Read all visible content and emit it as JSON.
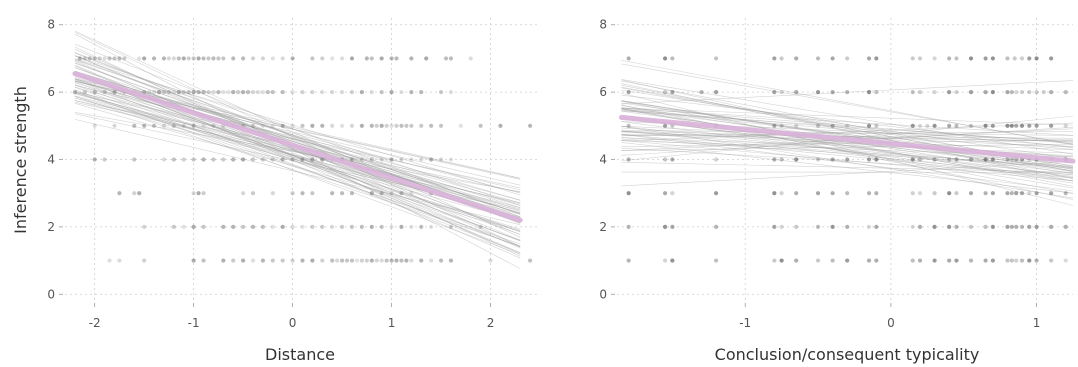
{
  "chart_data": [
    {
      "type": "scatter",
      "xlabel": "Distance",
      "ylabel": "Inference strength",
      "xlim": [
        -2.3,
        2.5
      ],
      "ylim": [
        -0.2,
        8.2
      ],
      "xticks": [
        -2,
        -1,
        0,
        1,
        2
      ],
      "yticks": [
        0,
        2,
        4,
        6,
        8
      ],
      "grid": true,
      "point_color": "#7f7f7f",
      "sample_line_color": "#9e9e9e",
      "fit_color": "#d9b3d9",
      "fit_line": {
        "x": [
          -2.2,
          2.3
        ],
        "y": [
          6.55,
          2.2
        ]
      },
      "rows": [
        {
          "y": 7,
          "x": [
            -2.15,
            -2.1,
            -2.05,
            -2.0,
            -1.95,
            -1.9,
            -1.85,
            -1.8,
            -1.75,
            -1.7,
            -1.55,
            -1.5,
            -1.4,
            -1.3,
            -1.25,
            -1.2,
            -1.15,
            -1.1,
            -1.05,
            -1.0,
            -0.95,
            -0.9,
            -0.85,
            -0.8,
            -0.75,
            -0.7,
            -0.6,
            -0.5,
            -0.4,
            -0.3,
            -0.2,
            -0.1,
            0.0,
            0.2,
            0.3,
            0.4,
            0.5,
            0.6,
            0.75,
            0.8,
            0.9,
            1.0,
            1.05,
            1.2,
            1.35,
            1.55,
            1.6,
            1.8
          ]
        },
        {
          "y": 6,
          "x": [
            -2.2,
            -2.1,
            -2.0,
            -1.9,
            -1.8,
            -1.7,
            -1.6,
            -1.5,
            -1.45,
            -1.4,
            -1.35,
            -1.3,
            -1.25,
            -1.2,
            -1.15,
            -1.1,
            -1.05,
            -1.0,
            -0.95,
            -0.9,
            -0.85,
            -0.8,
            -0.75,
            -0.7,
            -0.65,
            -0.6,
            -0.55,
            -0.5,
            -0.45,
            -0.4,
            -0.35,
            -0.3,
            -0.25,
            -0.2,
            -0.1,
            0.0,
            0.1,
            0.2,
            0.3,
            0.4,
            0.5,
            0.6,
            0.7,
            0.8,
            0.9,
            1.0,
            1.1,
            1.2,
            1.3,
            1.5,
            1.6
          ]
        },
        {
          "y": 5,
          "x": [
            -2.0,
            -1.8,
            -1.6,
            -1.5,
            -1.4,
            -1.3,
            -1.2,
            -1.1,
            -1.0,
            -0.9,
            -0.8,
            -0.7,
            -0.6,
            -0.5,
            -0.4,
            -0.3,
            -0.2,
            -0.1,
            0.0,
            0.1,
            0.2,
            0.3,
            0.4,
            0.5,
            0.6,
            0.7,
            0.8,
            0.85,
            0.9,
            0.95,
            1.0,
            1.05,
            1.1,
            1.15,
            1.2,
            1.3,
            1.4,
            1.5,
            1.7,
            1.9,
            2.1,
            2.4
          ]
        },
        {
          "y": 4,
          "x": [
            -2.0,
            -1.9,
            -1.6,
            -1.3,
            -1.2,
            -1.1,
            -1.0,
            -0.9,
            -0.8,
            -0.7,
            -0.6,
            -0.5,
            -0.4,
            -0.3,
            -0.2,
            -0.1,
            0.0,
            0.1,
            0.2,
            0.3,
            0.4,
            0.5,
            0.6,
            0.7,
            0.8,
            0.9,
            1.0,
            1.1,
            1.2,
            1.3,
            1.4,
            1.5,
            1.6
          ]
        },
        {
          "y": 3,
          "x": [
            -1.75,
            -1.6,
            -1.55,
            -1.0,
            -0.95,
            -0.9,
            -0.5,
            -0.4,
            -0.2,
            0.0,
            0.1,
            0.2,
            0.4,
            0.5,
            0.6,
            0.8,
            0.9,
            1.0,
            1.1,
            1.2,
            1.4
          ]
        },
        {
          "y": 2,
          "x": [
            -1.5,
            -1.2,
            -1.1,
            -1.0,
            -0.9,
            -0.7,
            -0.6,
            -0.5,
            -0.4,
            -0.3,
            -0.2,
            -0.1,
            0.0,
            0.1,
            0.2,
            0.3,
            0.4,
            0.5,
            0.6,
            0.7,
            0.8,
            0.9,
            1.0,
            1.1,
            1.2,
            1.3,
            1.4,
            1.6,
            1.9
          ]
        },
        {
          "y": 1,
          "x": [
            -1.85,
            -1.75,
            -1.5,
            -1.0,
            -0.9,
            -0.7,
            -0.6,
            -0.5,
            -0.4,
            -0.3,
            -0.2,
            -0.1,
            0.0,
            0.1,
            0.2,
            0.3,
            0.4,
            0.45,
            0.5,
            0.55,
            0.6,
            0.65,
            0.7,
            0.75,
            0.8,
            0.85,
            0.9,
            0.95,
            1.0,
            1.05,
            1.1,
            1.15,
            1.2,
            1.3,
            1.4,
            1.5,
            1.6,
            2.0,
            2.4
          ]
        }
      ],
      "sample_lines": {
        "count": 70,
        "x_range": [
          -2.2,
          2.3
        ],
        "intercept_mean": 4.35,
        "intercept_sd": 0.35,
        "slope_mean": -0.97,
        "slope_sd": 0.22
      }
    },
    {
      "type": "scatter",
      "xlabel": "Conclusion/consequent typicality",
      "ylabel": "",
      "xlim": [
        -1.88,
        1.25
      ],
      "ylim": [
        -0.2,
        8.2
      ],
      "xticks": [
        -1,
        0,
        1
      ],
      "yticks": [
        0,
        2,
        4,
        6,
        8
      ],
      "grid": true,
      "point_color": "#555555",
      "sample_line_color": "#9e9e9e",
      "fit_color": "#d9b3d9",
      "fit_line": {
        "x": [
          -1.85,
          1.25
        ],
        "y": [
          5.25,
          3.95
        ]
      },
      "rows": [
        {
          "y": 7,
          "x": [
            -1.8,
            -1.55,
            -1.5,
            -1.2,
            -0.8,
            -0.75,
            -0.65,
            -0.5,
            -0.4,
            -0.3,
            -0.15,
            -0.1,
            0.15,
            0.2,
            0.3,
            0.4,
            0.45,
            0.55,
            0.65,
            0.7,
            0.8,
            0.85,
            0.9,
            0.95,
            1.0,
            1.1
          ]
        },
        {
          "y": 6,
          "x": [
            -1.8,
            -1.55,
            -1.5,
            -1.3,
            -1.2,
            -0.8,
            -0.75,
            -0.65,
            -0.5,
            -0.4,
            -0.3,
            -0.15,
            -0.1,
            0.15,
            0.2,
            0.3,
            0.4,
            0.45,
            0.55,
            0.65,
            0.7,
            0.8,
            0.83,
            0.86,
            0.9,
            0.95,
            1.0,
            1.05,
            1.1,
            1.2
          ]
        },
        {
          "y": 5,
          "x": [
            -1.8,
            -1.55,
            -1.5,
            -1.2,
            -0.8,
            -0.75,
            -0.65,
            -0.5,
            -0.4,
            -0.3,
            -0.15,
            -0.1,
            0.15,
            0.2,
            0.25,
            0.3,
            0.4,
            0.45,
            0.55,
            0.65,
            0.7,
            0.8,
            0.83,
            0.86,
            0.9,
            0.95,
            1.0,
            1.1,
            1.2
          ]
        },
        {
          "y": 4,
          "x": [
            -1.8,
            -1.55,
            -1.5,
            -1.2,
            -0.8,
            -0.75,
            -0.65,
            -0.5,
            -0.4,
            -0.3,
            -0.15,
            -0.1,
            0.15,
            0.2,
            0.3,
            0.4,
            0.45,
            0.55,
            0.65,
            0.7,
            0.8,
            0.83,
            0.86,
            0.9,
            0.95,
            1.0,
            1.1,
            1.2
          ]
        },
        {
          "y": 3,
          "x": [
            -1.8,
            -1.55,
            -1.5,
            -1.2,
            -0.8,
            -0.75,
            -0.65,
            -0.5,
            -0.4,
            -0.3,
            -0.15,
            -0.1,
            0.15,
            0.2,
            0.3,
            0.4,
            0.45,
            0.55,
            0.65,
            0.7,
            0.8,
            0.83,
            0.86,
            0.9,
            0.95,
            1.0,
            1.1,
            1.2
          ]
        },
        {
          "y": 2,
          "x": [
            -1.8,
            -1.55,
            -1.5,
            -1.2,
            -0.8,
            -0.75,
            -0.65,
            -0.5,
            -0.4,
            -0.3,
            -0.15,
            -0.1,
            0.15,
            0.2,
            0.3,
            0.4,
            0.45,
            0.55,
            0.65,
            0.7,
            0.8,
            0.83,
            0.86,
            0.9,
            0.95,
            1.0,
            1.1,
            1.2
          ]
        },
        {
          "y": 1,
          "x": [
            -1.8,
            -1.55,
            -1.5,
            -1.2,
            -0.8,
            -0.75,
            -0.65,
            -0.5,
            -0.4,
            -0.3,
            -0.15,
            -0.1,
            0.15,
            0.2,
            0.3,
            0.4,
            0.45,
            0.55,
            0.65,
            0.7,
            0.8,
            0.83,
            0.86,
            0.9,
            0.95,
            1.0,
            1.1,
            1.2
          ]
        }
      ],
      "sample_lines": {
        "count": 70,
        "x_range": [
          -1.85,
          1.25
        ],
        "intercept_mean": 4.55,
        "intercept_sd": 0.38,
        "slope_mean": -0.42,
        "slope_sd": 0.32
      }
    }
  ]
}
